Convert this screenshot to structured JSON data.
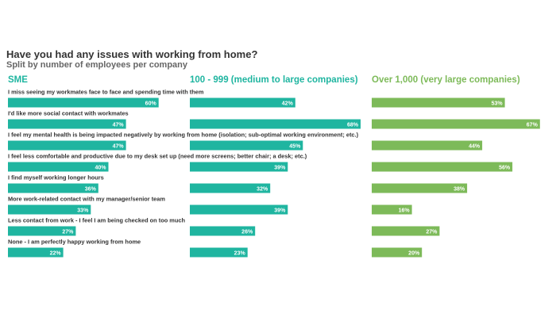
{
  "chart_data": {
    "type": "bar",
    "orientation": "horizontal",
    "title": "Have you had any issues with working from home?",
    "subtitle": "Split by number of employees per company",
    "categories": [
      "I miss seeing my workmates face to face and spending time with them",
      "I'd like more social contact with workmates",
      "I feel my mental health is being impacted negatively by working from home (isolation; sub-optimal working environment; etc.)",
      "I feel less comfortable and productive due to my desk set up (need more screens; better chair; a desk; etc.)",
      "I find myself working longer hours",
      "More work-related contact with my manager/senior team",
      "Less contact from work - I feel I am being checked on too much",
      "None - I am perfectly happy working from home"
    ],
    "series": [
      {
        "name": "SME",
        "color": "#1fb5a0",
        "values": [
          60,
          47,
          47,
          40,
          36,
          33,
          27,
          22
        ],
        "labels": [
          "60%",
          "47%",
          "47%",
          "40%",
          "36%",
          "33%",
          "27%",
          "22%"
        ]
      },
      {
        "name": "100 - 999 (medium to large companies)",
        "color": "#1fb5a0",
        "values": [
          42,
          68,
          45,
          39,
          32,
          39,
          26,
          23
        ],
        "labels": [
          "42%",
          "68%",
          "45%",
          "39%",
          "32%",
          "39%",
          "26%",
          "23%"
        ]
      },
      {
        "name": "Over 1,000 (very large companies)",
        "color": "#7dba59",
        "values": [
          53,
          67,
          44,
          56,
          38,
          16,
          27,
          20
        ],
        "labels": [
          "53%",
          "67%",
          "44%",
          "56%",
          "38%",
          "16%",
          "27%",
          "20%"
        ]
      }
    ],
    "value_max": 68,
    "unit": "%",
    "grid": false,
    "legend": "none"
  }
}
